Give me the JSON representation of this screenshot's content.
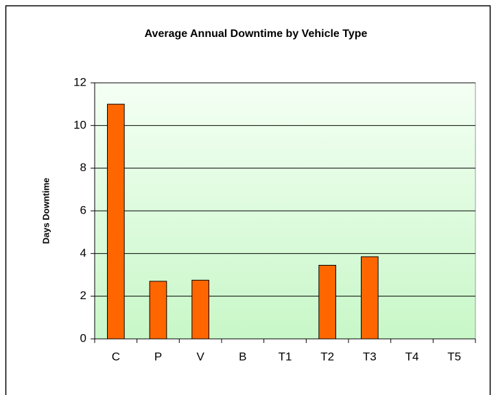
{
  "chart_data": {
    "type": "bar",
    "title": "Average Annual Downtime by Vehicle Type",
    "y_label": "Days Downtime",
    "categories": [
      "C",
      "P",
      "V",
      "B",
      "T1",
      "T2",
      "T3",
      "T4",
      "T5"
    ],
    "values": [
      11,
      2.7,
      2.75,
      0,
      0,
      3.45,
      3.85,
      0,
      0
    ],
    "color": "#ff6600",
    "ylim": [
      0,
      12
    ],
    "yticks": [
      0,
      2,
      4,
      6,
      8,
      10,
      12
    ],
    "grid": true
  }
}
